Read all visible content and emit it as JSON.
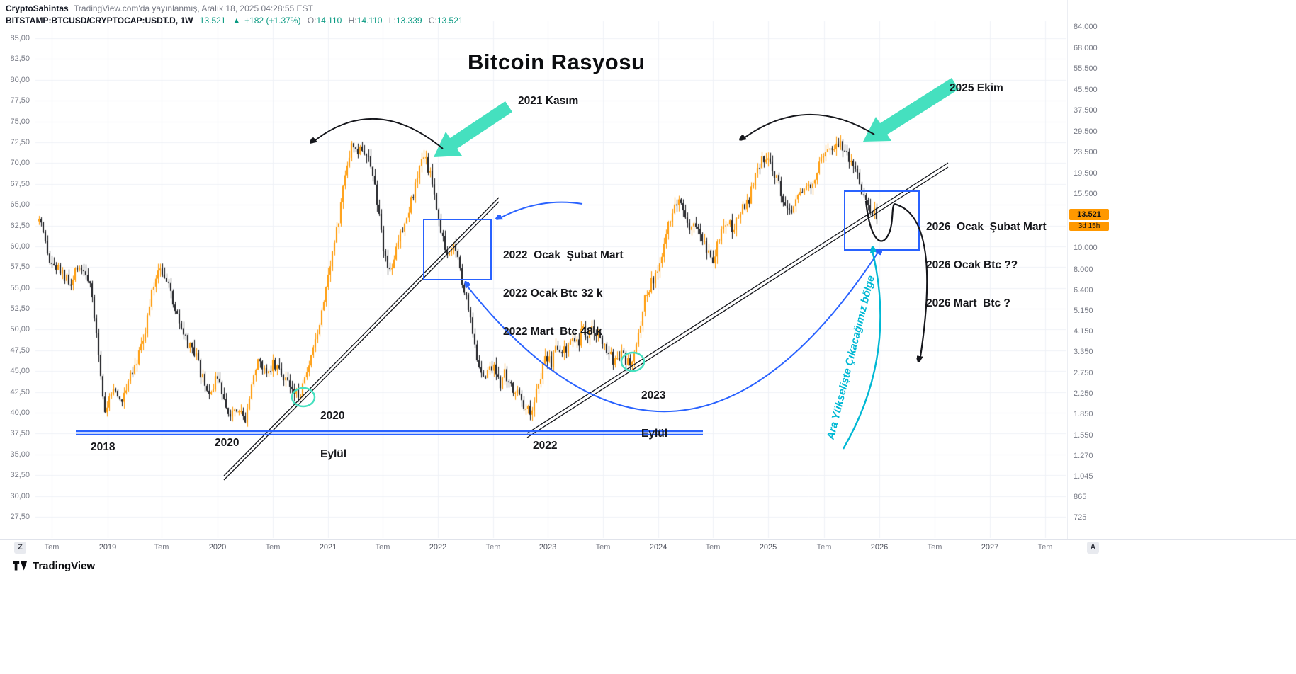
{
  "header": {
    "author": "CryptoSahintas",
    "published": "TradingView.com'da yayınlanmış, Aralık 18, 2025 04:28:55 EST",
    "symbol": "BITSTAMP:BTCUSD/CRYPTOCAP:USDT.D, 1W",
    "price": "13.521",
    "change_arrow": "▲",
    "change": "+182 (+1.37%)",
    "o_label": "O:",
    "o_value": "14.110",
    "h_label": "H:",
    "h_value": "14.110",
    "l_label": "L:",
    "l_value": "13.339",
    "c_label": "C:",
    "c_value": "13.521"
  },
  "chart_data": {
    "type": "candlestick",
    "title": "Bitcoin Rasyosu",
    "symbol": "BITSTAMP:BTCUSD/CRYPTOCAP:USDT.D",
    "timeframe": "1W",
    "left_axis": {
      "max": 85.0,
      "min": 27.5,
      "step": 2.5
    },
    "right_axis_labels": [
      "84.000",
      "68.000",
      "55.500",
      "45.500",
      "37.500",
      "29.500",
      "23.500",
      "19.500",
      "15.500",
      "10.000",
      "8.000",
      "6.400",
      "5.150",
      "4.150",
      "3.350",
      "2.750",
      "2.250",
      "1.850",
      "1.550",
      "1.270",
      "1.045",
      "865",
      "725"
    ],
    "x_labels": [
      "Tem",
      "2019",
      "Tem",
      "2020",
      "Tem",
      "2021",
      "Tem",
      "2022",
      "Tem",
      "2023",
      "Tem",
      "2024",
      "Tem",
      "2025",
      "Tem",
      "2026",
      "Tem",
      "2027",
      "Tem"
    ],
    "last_price_badge": "13.521",
    "countdown_badge": "3d 15h",
    "colors": {
      "up": "#ff9800",
      "down": "#16171c",
      "blue": "#2962ff",
      "teal": "#45e0bf",
      "cyan": "#00b8d4",
      "grid": "#f0f2f7"
    },
    "price_path": [
      [
        2018.38,
        63
      ],
      [
        2018.47,
        58
      ],
      [
        2018.57,
        57
      ],
      [
        2018.67,
        55
      ],
      [
        2018.73,
        58
      ],
      [
        2018.83,
        56
      ],
      [
        2018.92,
        47
      ],
      [
        2018.97,
        40
      ],
      [
        2019.05,
        43
      ],
      [
        2019.12,
        41
      ],
      [
        2019.18,
        44
      ],
      [
        2019.28,
        47
      ],
      [
        2019.34,
        50
      ],
      [
        2019.41,
        55
      ],
      [
        2019.47,
        58
      ],
      [
        2019.53,
        56
      ],
      [
        2019.6,
        53
      ],
      [
        2019.66,
        50
      ],
      [
        2019.73,
        48
      ],
      [
        2019.79,
        47
      ],
      [
        2019.86,
        44
      ],
      [
        2019.92,
        42
      ],
      [
        2019.98,
        44
      ],
      [
        2020.05,
        42
      ],
      [
        2020.11,
        40
      ],
      [
        2020.18,
        41
      ],
      [
        2020.24,
        39
      ],
      [
        2020.31,
        44
      ],
      [
        2020.37,
        46
      ],
      [
        2020.43,
        45
      ],
      [
        2020.5,
        46
      ],
      [
        2020.56,
        45
      ],
      [
        2020.63,
        44
      ],
      [
        2020.69,
        42
      ],
      [
        2020.76,
        42.5
      ],
      [
        2020.82,
        45
      ],
      [
        2020.88,
        48
      ],
      [
        2020.95,
        53
      ],
      [
        2021.0,
        57
      ],
      [
        2021.05,
        60
      ],
      [
        2021.11,
        64
      ],
      [
        2021.15,
        69
      ],
      [
        2021.21,
        72
      ],
      [
        2021.27,
        71
      ],
      [
        2021.32,
        72
      ],
      [
        2021.37,
        70
      ],
      [
        2021.43,
        67
      ],
      [
        2021.5,
        60
      ],
      [
        2021.55,
        57
      ],
      [
        2021.59,
        58
      ],
      [
        2021.64,
        61
      ],
      [
        2021.69,
        63
      ],
      [
        2021.74,
        65
      ],
      [
        2021.79,
        67
      ],
      [
        2021.83,
        69
      ],
      [
        2021.87,
        71
      ],
      [
        2021.92,
        69
      ],
      [
        2021.97,
        66
      ],
      [
        2022.0,
        64
      ],
      [
        2022.04,
        61
      ],
      [
        2022.09,
        59
      ],
      [
        2022.14,
        60
      ],
      [
        2022.19,
        58
      ],
      [
        2022.23,
        55
      ],
      [
        2022.28,
        52
      ],
      [
        2022.32,
        49
      ],
      [
        2022.36,
        46
      ],
      [
        2022.41,
        44
      ],
      [
        2022.46,
        45
      ],
      [
        2022.5,
        46
      ],
      [
        2022.56,
        43
      ],
      [
        2022.6,
        45
      ],
      [
        2022.64,
        44
      ],
      [
        2022.68,
        42
      ],
      [
        2022.73,
        43
      ],
      [
        2022.78,
        41
      ],
      [
        2022.83,
        40
      ],
      [
        2022.88,
        42
      ],
      [
        2022.92,
        44
      ],
      [
        2022.97,
        47
      ],
      [
        2023.03,
        46
      ],
      [
        2023.07,
        48
      ],
      [
        2023.12,
        47
      ],
      [
        2023.17,
        48
      ],
      [
        2023.22,
        49
      ],
      [
        2023.26,
        48
      ],
      [
        2023.31,
        50
      ],
      [
        2023.36,
        49
      ],
      [
        2023.41,
        50
      ],
      [
        2023.46,
        49
      ],
      [
        2023.5,
        48
      ],
      [
        2023.55,
        47
      ],
      [
        2023.6,
        46
      ],
      [
        2023.65,
        47
      ],
      [
        2023.71,
        46
      ],
      [
        2023.77,
        46.5
      ],
      [
        2023.81,
        49
      ],
      [
        2023.86,
        53
      ],
      [
        2023.91,
        55
      ],
      [
        2023.95,
        56
      ],
      [
        2024.0,
        57
      ],
      [
        2024.05,
        60
      ],
      [
        2024.1,
        63
      ],
      [
        2024.14,
        65
      ],
      [
        2024.2,
        66
      ],
      [
        2024.24,
        64
      ],
      [
        2024.29,
        62
      ],
      [
        2024.34,
        63
      ],
      [
        2024.39,
        61
      ],
      [
        2024.43,
        60
      ],
      [
        2024.49,
        58
      ],
      [
        2024.53,
        60
      ],
      [
        2024.58,
        62
      ],
      [
        2024.63,
        63
      ],
      [
        2024.68,
        62
      ],
      [
        2024.72,
        64
      ],
      [
        2024.77,
        65
      ],
      [
        2024.83,
        66
      ],
      [
        2024.87,
        68
      ],
      [
        2024.92,
        70
      ],
      [
        2024.97,
        71
      ],
      [
        2025.0,
        70
      ],
      [
        2025.05,
        69
      ],
      [
        2025.1,
        67
      ],
      [
        2025.15,
        65
      ],
      [
        2025.19,
        64
      ],
      [
        2025.24,
        65
      ],
      [
        2025.29,
        66
      ],
      [
        2025.34,
        68
      ],
      [
        2025.39,
        67
      ],
      [
        2025.43,
        69
      ],
      [
        2025.48,
        71
      ],
      [
        2025.53,
        72
      ],
      [
        2025.58,
        71
      ],
      [
        2025.62,
        72
      ],
      [
        2025.68,
        72.3
      ],
      [
        2025.72,
        71
      ],
      [
        2025.77,
        70
      ],
      [
        2025.82,
        68
      ],
      [
        2025.86,
        66
      ],
      [
        2025.9,
        65
      ],
      [
        2025.94,
        64
      ],
      [
        2025.98,
        63.8
      ]
    ]
  },
  "annotations": {
    "label_2021": "2021 Kasım",
    "label_2025": "2025 Ekim",
    "box1_line1": "2022  Ocak  Şubat Mart",
    "box1_line2": "2022 Ocak Btc 32 k",
    "box1_line3": "2022 Mart  Btc 48 k",
    "box2_line1": "2026  Ocak  Şubat Mart",
    "box2_line2": "2026 Ocak Btc ??",
    "box2_line3": "2026 Mart  Btc ?",
    "circle1_line1": "2020",
    "circle1_line2": "Eylül",
    "circle2_line1": "2023",
    "circle2_line2": "Eylül",
    "year_2018": "2018",
    "year_2020": "2020",
    "year_2022": "2022",
    "cyan_note": "Ara Yükselişte Çıkacağımız bölge"
  },
  "footer": {
    "logo_text": "TradingView",
    "z_button": "Z",
    "a_button": "A"
  }
}
